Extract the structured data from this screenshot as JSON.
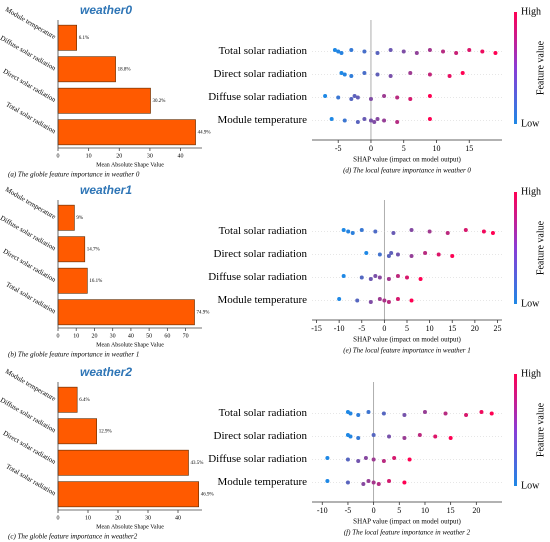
{
  "chart_data": [
    {
      "type": "bar",
      "title": "weather0",
      "categories": [
        "Module temperature",
        "Diffuse solar radiation",
        "Direct solar radiation",
        "Total solar radiation"
      ],
      "values": [
        6.1,
        18.8,
        30.2,
        44.9
      ],
      "value_labels": [
        "6.1%",
        "18.8%",
        "30.2%",
        "44.9%"
      ],
      "color": "#ff5a00",
      "xlim": [
        0,
        47
      ],
      "xticks": [
        0,
        10,
        20,
        30,
        40
      ],
      "xlabel": "Mean Absolute Shape Value",
      "caption": "(a) The globle feature importance in weather 0"
    },
    {
      "type": "bar",
      "title": "weather1",
      "categories": [
        "Module temperature",
        "Diffuse solar radiation",
        "Direct solar radiation",
        "Total solar radiation"
      ],
      "values": [
        9,
        14.7,
        16.1,
        74.9
      ],
      "value_labels": [
        "9%",
        "14.7%",
        "16.1%",
        "74.9%"
      ],
      "color": "#ff5a00",
      "xlim": [
        0,
        79
      ],
      "xticks": [
        0,
        10,
        20,
        30,
        40,
        50,
        60,
        70
      ],
      "xlabel": "Mean Absolute Shape Value",
      "caption": "(b) The globle feature importance in weather 1"
    },
    {
      "type": "bar",
      "title": "weather2",
      "categories": [
        "Module temperature",
        "Diffuse solar radiation",
        "Direct solar radiation",
        "Total solar radiation"
      ],
      "values": [
        6.4,
        12.9,
        43.5,
        46.9
      ],
      "value_labels": [
        "6.4%",
        "12.9%",
        "43.5%",
        "46.9%"
      ],
      "color": "#ff5a00",
      "xlim": [
        0,
        48
      ],
      "xticks": [
        0,
        10,
        20,
        30,
        40
      ],
      "xlabel": "Mean Absolute Shape Value",
      "caption": "(c) The globle feature importance in weather2"
    },
    {
      "type": "beeswarm",
      "xlim": [
        -9,
        20
      ],
      "xticks": [
        -5,
        0,
        5,
        10,
        15
      ],
      "xlabel": "SHAP value (impact on model output)",
      "caption": "(d) The local feature importance in weather 0",
      "colorbar_high": "High",
      "colorbar_low": "Low",
      "colorbar_label": "Feature value",
      "series": [
        {
          "name": "Total solar radiation",
          "values": [
            -5.5,
            -5,
            -4.5,
            -3,
            -1,
            1,
            3,
            5,
            7,
            9,
            11,
            13,
            15,
            17,
            19
          ]
        },
        {
          "name": "Direct solar radiation",
          "values": [
            -4.5,
            -4,
            -3,
            -1,
            1,
            3,
            6,
            9,
            12,
            14
          ]
        },
        {
          "name": "Diffuse solar radiation",
          "values": [
            -7,
            -5,
            -3,
            -2.5,
            -2,
            0,
            2,
            4,
            6,
            9
          ]
        },
        {
          "name": "Module temperature",
          "values": [
            -6,
            -4,
            -2,
            -1,
            0,
            0.5,
            1,
            2,
            4,
            9
          ]
        }
      ]
    },
    {
      "type": "beeswarm",
      "xlim": [
        -16,
        26
      ],
      "xticks": [
        -15,
        -10,
        -5,
        0,
        5,
        10,
        15,
        20,
        25
      ],
      "xlabel": "SHAP value (impact on model output)",
      "caption": "(e) The local feature importance in weather 1",
      "colorbar_high": "High",
      "colorbar_low": "Low",
      "colorbar_label": "Feature value",
      "series": [
        {
          "name": "Total solar radiation",
          "values": [
            -9,
            -8,
            -7,
            -5,
            -2,
            2,
            6,
            10,
            14,
            18,
            22,
            24
          ]
        },
        {
          "name": "Direct solar radiation",
          "values": [
            -4,
            -1,
            1,
            1.5,
            3,
            6,
            9,
            12,
            15
          ]
        },
        {
          "name": "Diffuse solar radiation",
          "values": [
            -9,
            -5,
            -3,
            -2,
            -1,
            1,
            3,
            5,
            8
          ]
        },
        {
          "name": "Module temperature",
          "values": [
            -10,
            -6,
            -3,
            -1,
            0,
            1,
            3,
            6
          ]
        }
      ]
    },
    {
      "type": "beeswarm",
      "xlim": [
        -12,
        25
      ],
      "xticks": [
        -10,
        -5,
        0,
        5,
        10,
        15,
        20
      ],
      "xlabel": "SHAP value (impact on model output)",
      "caption": "(f) The local feature importance in weather 2",
      "colorbar_high": "High",
      "colorbar_low": "Low",
      "colorbar_label": "Feature value",
      "series": [
        {
          "name": "Total solar radiation",
          "values": [
            -5,
            -4.5,
            -3,
            -1,
            2,
            6,
            10,
            14,
            18,
            21,
            23
          ]
        },
        {
          "name": "Direct solar radiation",
          "values": [
            -5,
            -4.5,
            -3,
            0,
            3,
            6,
            9,
            12,
            15
          ]
        },
        {
          "name": "Diffuse solar radiation",
          "values": [
            -9,
            -5,
            -3,
            -1.5,
            0,
            2,
            4,
            7
          ]
        },
        {
          "name": "Module temperature",
          "values": [
            -9,
            -5,
            -2,
            -1,
            0,
            1,
            3,
            6
          ]
        }
      ]
    }
  ]
}
